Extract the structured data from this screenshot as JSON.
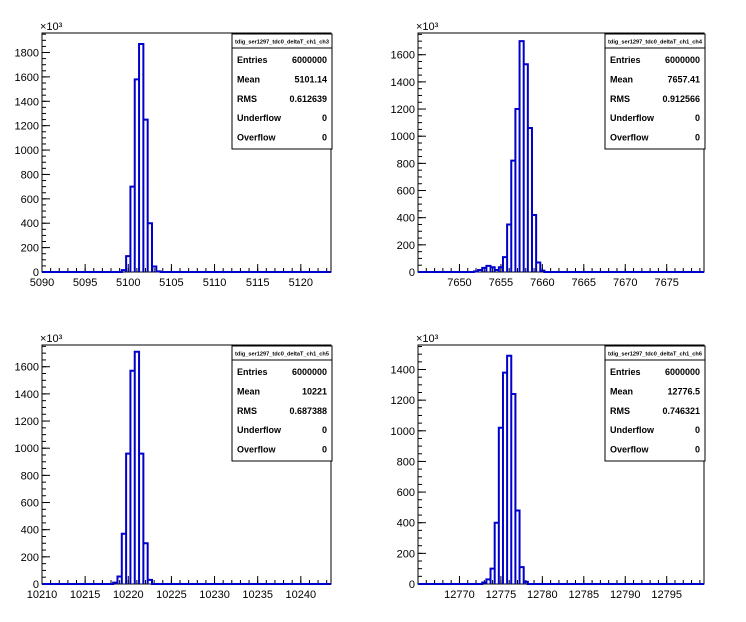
{
  "chart_data": [
    {
      "type": "bar",
      "title": "tdig_ser1297_tdc0_deltaT_ch1_ch3",
      "exponent_label": "×10³",
      "xlim": [
        5090,
        5123.5
      ],
      "ylim": [
        0,
        1960
      ],
      "x_ticks": [
        5090,
        5095,
        5100,
        5105,
        5110,
        5115,
        5120
      ],
      "y_ticks": [
        0,
        200,
        400,
        600,
        800,
        1000,
        1200,
        1400,
        1600,
        1800
      ],
      "bin_width": 0.5,
      "bins": [
        {
          "x": 5099.5,
          "y": 15
        },
        {
          "x": 5100.0,
          "y": 130
        },
        {
          "x": 5100.5,
          "y": 700
        },
        {
          "x": 5101.0,
          "y": 1580
        },
        {
          "x": 5101.5,
          "y": 1870
        },
        {
          "x": 5102.0,
          "y": 1250
        },
        {
          "x": 5102.5,
          "y": 400
        },
        {
          "x": 5103.0,
          "y": 45
        },
        {
          "x": 5103.5,
          "y": 5
        }
      ],
      "stats": [
        {
          "label": "Entries",
          "value": "6000000"
        },
        {
          "label": "Mean",
          "value": "5101.14"
        },
        {
          "label": "RMS",
          "value": "0.612639"
        },
        {
          "label": "Underflow",
          "value": "0"
        },
        {
          "label": "Overflow",
          "value": "0"
        }
      ]
    },
    {
      "type": "bar",
      "title": "tdig_ser1297_tdc0_deltaT_ch1_ch4",
      "exponent_label": "×10³",
      "xlim": [
        7645,
        7679.5
      ],
      "ylim": [
        0,
        1760
      ],
      "x_ticks": [
        7650,
        7655,
        7660,
        7665,
        7670,
        7675
      ],
      "y_ticks": [
        0,
        200,
        400,
        600,
        800,
        1000,
        1200,
        1400,
        1600
      ],
      "bin_width": 0.5,
      "bins": [
        {
          "x": 7652.0,
          "y": 5
        },
        {
          "x": 7652.5,
          "y": 15
        },
        {
          "x": 7653.0,
          "y": 30
        },
        {
          "x": 7653.5,
          "y": 45
        },
        {
          "x": 7654.0,
          "y": 35
        },
        {
          "x": 7654.5,
          "y": 15
        },
        {
          "x": 7655.0,
          "y": 35
        },
        {
          "x": 7655.5,
          "y": 110
        },
        {
          "x": 7656.0,
          "y": 350
        },
        {
          "x": 7656.5,
          "y": 820
        },
        {
          "x": 7657.0,
          "y": 1200
        },
        {
          "x": 7657.5,
          "y": 1700
        },
        {
          "x": 7658.0,
          "y": 1530
        },
        {
          "x": 7658.5,
          "y": 1060
        },
        {
          "x": 7659.0,
          "y": 420
        },
        {
          "x": 7659.5,
          "y": 70
        },
        {
          "x": 7660.0,
          "y": 10
        }
      ],
      "stats": [
        {
          "label": "Entries",
          "value": "6000000"
        },
        {
          "label": "Mean",
          "value": "7657.41"
        },
        {
          "label": "RMS",
          "value": "0.912566"
        },
        {
          "label": "Underflow",
          "value": "0"
        },
        {
          "label": "Overflow",
          "value": "0"
        }
      ]
    },
    {
      "type": "bar",
      "title": "tdig_ser1297_tdc0_deltaT_ch1_ch5",
      "exponent_label": "×10³",
      "xlim": [
        10210,
        10243.5
      ],
      "ylim": [
        0,
        1760
      ],
      "x_ticks": [
        10210,
        10215,
        10220,
        10225,
        10230,
        10235,
        10240
      ],
      "y_ticks": [
        0,
        200,
        400,
        600,
        800,
        1000,
        1200,
        1400,
        1600
      ],
      "bin_width": 0.5,
      "bins": [
        {
          "x": 10218.5,
          "y": 10
        },
        {
          "x": 10219.0,
          "y": 55
        },
        {
          "x": 10219.5,
          "y": 370
        },
        {
          "x": 10220.0,
          "y": 960
        },
        {
          "x": 10220.5,
          "y": 1570
        },
        {
          "x": 10221.0,
          "y": 1710
        },
        {
          "x": 10221.5,
          "y": 960
        },
        {
          "x": 10222.0,
          "y": 300
        },
        {
          "x": 10222.5,
          "y": 30
        }
      ],
      "stats": [
        {
          "label": "Entries",
          "value": "6000000"
        },
        {
          "label": "Mean",
          "value": "10221"
        },
        {
          "label": "RMS",
          "value": "0.687388"
        },
        {
          "label": "Underflow",
          "value": "0"
        },
        {
          "label": "Overflow",
          "value": "0"
        }
      ]
    },
    {
      "type": "bar",
      "title": "tdig_ser1297_tdc0_deltaT_ch1_ch6",
      "exponent_label": "×10³",
      "xlim": [
        12765,
        12799.5
      ],
      "ylim": [
        0,
        1560
      ],
      "x_ticks": [
        12770,
        12775,
        12780,
        12785,
        12790,
        12795
      ],
      "y_ticks": [
        0,
        200,
        400,
        600,
        800,
        1000,
        1200,
        1400
      ],
      "bin_width": 0.5,
      "bins": [
        {
          "x": 12773.0,
          "y": 10
        },
        {
          "x": 12773.5,
          "y": 30
        },
        {
          "x": 12774.0,
          "y": 100
        },
        {
          "x": 12774.5,
          "y": 400
        },
        {
          "x": 12775.0,
          "y": 1020
        },
        {
          "x": 12775.5,
          "y": 1380
        },
        {
          "x": 12776.0,
          "y": 1490
        },
        {
          "x": 12776.5,
          "y": 1240
        },
        {
          "x": 12777.0,
          "y": 480
        },
        {
          "x": 12777.5,
          "y": 110
        },
        {
          "x": 12778.0,
          "y": 15
        }
      ],
      "stats": [
        {
          "label": "Entries",
          "value": "6000000"
        },
        {
          "label": "Mean",
          "value": "12776.5"
        },
        {
          "label": "RMS",
          "value": "0.746321"
        },
        {
          "label": "Underflow",
          "value": "0"
        },
        {
          "label": "Overflow",
          "value": "0"
        }
      ]
    }
  ]
}
